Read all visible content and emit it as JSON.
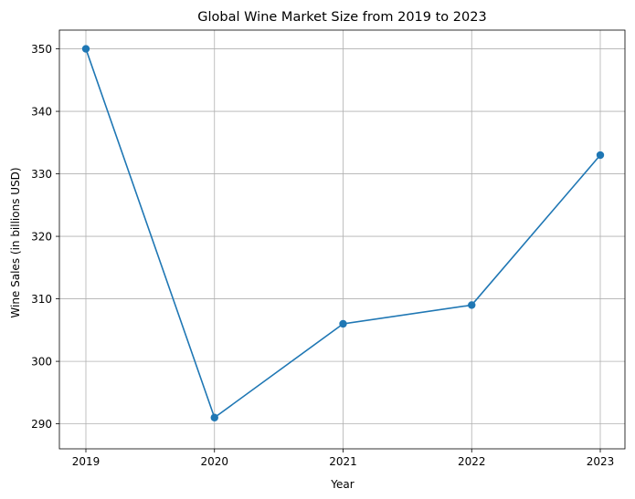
{
  "chart_data": {
    "type": "line",
    "title": "Global Wine Market Size from 2019 to 2023",
    "xlabel": "Year",
    "ylabel": "Wine Sales (in billions USD)",
    "categories": [
      "2019",
      "2020",
      "2021",
      "2022",
      "2023"
    ],
    "series": [
      {
        "values": [
          350,
          291,
          306,
          309,
          333
        ]
      }
    ],
    "yticks": [
      "290",
      "300",
      "310",
      "320",
      "330",
      "340",
      "350"
    ],
    "ylim": [
      286,
      353
    ],
    "grid": true,
    "marker": "circle",
    "line_color": "#1f77b4"
  }
}
